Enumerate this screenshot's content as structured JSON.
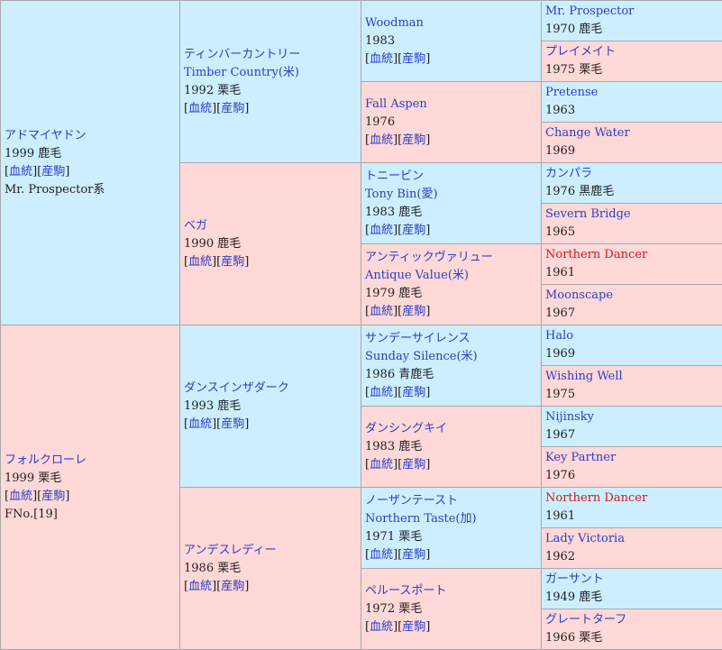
{
  "gen1": [
    {
      "name": "アドマイヤドン",
      "year": "1999",
      "coat": "鹿毛",
      "links": [
        "血統",
        "産駒"
      ],
      "extra": "Mr. Prospector系"
    },
    {
      "name": "フォルクローレ",
      "year": "1999",
      "coat": "栗毛",
      "links": [
        "血統",
        "産駒"
      ],
      "extra": "FNo.[19]"
    }
  ],
  "gen2": [
    {
      "name": "ティンバーカントリー",
      "alt": "Timber Country(米)",
      "year": "1992",
      "coat": "栗毛",
      "links": [
        "血統",
        "産駒"
      ]
    },
    {
      "name": "ベガ",
      "year": "1990",
      "coat": "鹿毛",
      "links": [
        "血統",
        "産駒"
      ]
    },
    {
      "name": "ダンスインザダーク",
      "year": "1993",
      "coat": "鹿毛",
      "links": [
        "血統",
        "産駒"
      ]
    },
    {
      "name": "アンデスレディー",
      "year": "1986",
      "coat": "栗毛",
      "links": [
        "血統",
        "産駒"
      ]
    }
  ],
  "gen3": [
    {
      "name": "Woodman",
      "year": "1983",
      "links": [
        "血統",
        "産駒"
      ]
    },
    {
      "name": "Fall Aspen",
      "year": "1976",
      "links": [
        "血統",
        "産駒"
      ]
    },
    {
      "name": "トニービン",
      "alt": "Tony Bin(愛)",
      "year": "1983",
      "coat": "鹿毛",
      "links": [
        "血統",
        "産駒"
      ]
    },
    {
      "name": "アンティックヴァリュー",
      "alt": "Antique Value(米)",
      "year": "1979",
      "coat": "鹿毛",
      "links": [
        "血統",
        "産駒"
      ]
    },
    {
      "name": "サンデーサイレンス",
      "alt": "Sunday Silence(米)",
      "year": "1986",
      "coat": "青鹿毛",
      "links": [
        "血統",
        "産駒"
      ]
    },
    {
      "name": "ダンシングキイ",
      "year": "1983",
      "coat": "鹿毛",
      "links": [
        "血統",
        "産駒"
      ]
    },
    {
      "name": "ノーザンテースト",
      "alt": "Northern Taste(加)",
      "year": "1971",
      "coat": "栗毛",
      "links": [
        "血統",
        "産駒"
      ]
    },
    {
      "name": "ペルースポート",
      "year": "1972",
      "coat": "栗毛",
      "links": [
        "血統",
        "産駒"
      ]
    }
  ],
  "gen4": [
    {
      "name": "Mr. Prospector",
      "year": "1970",
      "coat": "鹿毛"
    },
    {
      "name": "プレイメイト",
      "year": "1975",
      "coat": "栗毛"
    },
    {
      "name": "Pretense",
      "year": "1963"
    },
    {
      "name": "Change Water",
      "year": "1969"
    },
    {
      "name": "カンパラ",
      "year": "1976",
      "coat": "黒鹿毛"
    },
    {
      "name": "Severn Bridge",
      "year": "1965"
    },
    {
      "name": "Northern Dancer",
      "year": "1961"
    },
    {
      "name": "Moonscape",
      "year": "1967"
    },
    {
      "name": "Halo",
      "year": "1969"
    },
    {
      "name": "Wishing Well",
      "year": "1975"
    },
    {
      "name": "Nijinsky",
      "year": "1967"
    },
    {
      "name": "Key Partner",
      "year": "1976"
    },
    {
      "name": "Northern Dancer",
      "year": "1961"
    },
    {
      "name": "Lady Victoria",
      "year": "1962"
    },
    {
      "name": "ガーサント",
      "year": "1949",
      "coat": "鹿毛"
    },
    {
      "name": "グレートターフ",
      "year": "1966",
      "coat": "栗毛"
    }
  ],
  "colors": {
    "male_bg": "#cceeff",
    "female_bg": "#ffd8d8",
    "link": "#2a3fc4",
    "highlight": "#d11a1a"
  }
}
